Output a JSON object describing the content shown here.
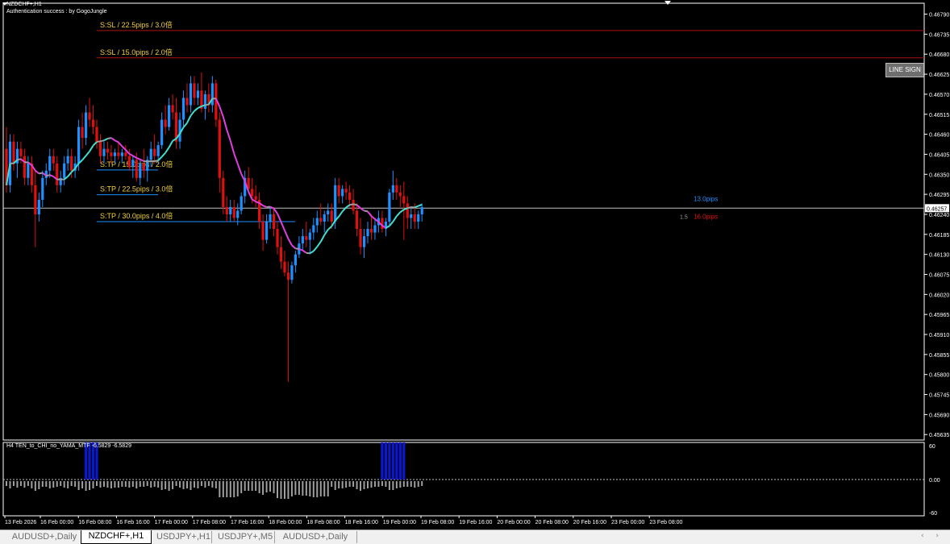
{
  "window": {
    "symbol_title": "NZDCHF+,H1",
    "auth_text": "Authentication success : by GogoJungle"
  },
  "colors": {
    "background": "#000000",
    "bull": "#1e90ff",
    "bear": "#e01010",
    "ma_up": "#40e0d0",
    "ma_down": "#e040e0",
    "ma_flat": "#a0a0a0",
    "sl_line": "#b01010",
    "tp_line": "#1e90ff",
    "label_yellow": "#f0d040",
    "osc_bar": "#a0a0a0",
    "osc_signal": "#0a18d0",
    "grid_text": "#ffffff"
  },
  "trade_lines": {
    "sl_lines": [
      {
        "label": "S:SL / 22.5pips / 3.0倍",
        "price": 0.46745
      },
      {
        "label": "S:SL / 15.0pips / 2.0倍",
        "price": 0.4667
      }
    ],
    "tp_lines": [
      {
        "label": "S:TP / 15.0pips / 2.0倍",
        "price": 0.46362
      },
      {
        "label": "S:TP / 22.5pips / 3.0倍",
        "price": 0.46294
      },
      {
        "label": "S:TP / 30.0pips / 4.0倍",
        "price": 0.4622
      }
    ],
    "current_price_label": "0.46257",
    "current_price": 0.46257,
    "pips_up_label": "13.0pips",
    "pips_down_label": "16.0pips",
    "ratio_label": "1.5"
  },
  "line_sign_button": "LINE SIGN",
  "price_axis": {
    "ticks": [
      "0.46790",
      "0.46735",
      "0.46680",
      "0.46625",
      "0.46570",
      "0.46515",
      "0.46460",
      "0.46405",
      "0.46350",
      "0.46295",
      "0.46240",
      "0.46185",
      "0.46130",
      "0.46075",
      "0.46020",
      "0.45965",
      "0.45910",
      "0.45855",
      "0.45800",
      "0.45745",
      "0.45690",
      "0.45635"
    ]
  },
  "time_axis": {
    "labels": [
      "13 Feb 2026",
      "16 Feb 00:00",
      "16 Feb 08:00",
      "16 Feb 16:00",
      "17 Feb 00:00",
      "17 Feb 08:00",
      "17 Feb 16:00",
      "18 Feb 00:00",
      "18 Feb 08:00",
      "18 Feb 16:00",
      "19 Feb 00:00",
      "19 Feb 08:00",
      "19 Feb 16:00",
      "20 Feb 00:00",
      "20 Feb 08:00",
      "20 Feb 16:00",
      "23 Feb 00:00",
      "23 Feb 08:00"
    ]
  },
  "oscillator": {
    "title": "H4  TEN_to_CHI_no_YAMA_MTF -6.5829 -6.5829",
    "ticks": [
      "60",
      "0.00",
      "-60"
    ]
  },
  "tabs": [
    {
      "label": "AUDUSD+,Daily",
      "active": false
    },
    {
      "label": "NZDCHF+,H1",
      "active": true
    },
    {
      "label": "USDJPY+,H1",
      "active": false
    },
    {
      "label": "USDJPY+,M5",
      "active": false
    },
    {
      "label": "AUDUSD+,Daily",
      "active": false
    }
  ],
  "chart_data": {
    "type": "candlestick",
    "symbol": "NZDCHF+",
    "timeframe": "H1",
    "ylim": [
      0.4562,
      0.4682
    ],
    "candles": [
      [
        0.4642,
        0.4648,
        0.463,
        0.4632
      ],
      [
        0.4632,
        0.4646,
        0.463,
        0.4644
      ],
      [
        0.4644,
        0.4646,
        0.4636,
        0.4638
      ],
      [
        0.4638,
        0.4644,
        0.4634,
        0.4642
      ],
      [
        0.4642,
        0.4644,
        0.4638,
        0.464
      ],
      [
        0.464,
        0.4642,
        0.4632,
        0.4634
      ],
      [
        0.4634,
        0.464,
        0.4632,
        0.4638
      ],
      [
        0.4638,
        0.464,
        0.463,
        0.4632
      ],
      [
        0.4632,
        0.4636,
        0.4615,
        0.4624
      ],
      [
        0.4624,
        0.463,
        0.4622,
        0.4628
      ],
      [
        0.4628,
        0.4636,
        0.4626,
        0.4634
      ],
      [
        0.4634,
        0.4638,
        0.4632,
        0.4636
      ],
      [
        0.4636,
        0.4642,
        0.4634,
        0.464
      ],
      [
        0.464,
        0.4642,
        0.4636,
        0.4638
      ],
      [
        0.4638,
        0.464,
        0.463,
        0.4632
      ],
      [
        0.4632,
        0.4636,
        0.463,
        0.4634
      ],
      [
        0.4634,
        0.464,
        0.4632,
        0.4638
      ],
      [
        0.4638,
        0.4642,
        0.4636,
        0.464
      ],
      [
        0.464,
        0.4642,
        0.4634,
        0.4636
      ],
      [
        0.4636,
        0.464,
        0.4634,
        0.4638
      ],
      [
        0.4638,
        0.465,
        0.4636,
        0.4648
      ],
      [
        0.4648,
        0.4652,
        0.4642,
        0.4645
      ],
      [
        0.4645,
        0.4654,
        0.4643,
        0.4652
      ],
      [
        0.4652,
        0.4656,
        0.4648,
        0.465
      ],
      [
        0.465,
        0.4654,
        0.4646,
        0.4648
      ],
      [
        0.4648,
        0.465,
        0.4642,
        0.4644
      ],
      [
        0.4644,
        0.4646,
        0.4638,
        0.464
      ],
      [
        0.464,
        0.4644,
        0.4638,
        0.4642
      ],
      [
        0.4642,
        0.4644,
        0.4639,
        0.4641
      ],
      [
        0.4641,
        0.4643,
        0.4638,
        0.464
      ],
      [
        0.464,
        0.4642,
        0.4638,
        0.4641
      ],
      [
        0.4641,
        0.4644,
        0.4639,
        0.464
      ],
      [
        0.464,
        0.4642,
        0.4638,
        0.4641
      ],
      [
        0.4641,
        0.4643,
        0.4639,
        0.464
      ],
      [
        0.464,
        0.4642,
        0.4636,
        0.4637
      ],
      [
        0.4637,
        0.464,
        0.4634,
        0.4639
      ],
      [
        0.4639,
        0.4641,
        0.4633,
        0.4634
      ],
      [
        0.4634,
        0.4639,
        0.4632,
        0.4638
      ],
      [
        0.4638,
        0.4642,
        0.4634,
        0.4636
      ],
      [
        0.4636,
        0.464,
        0.4633,
        0.4639
      ],
      [
        0.4639,
        0.4644,
        0.4637,
        0.4642
      ],
      [
        0.4642,
        0.4646,
        0.4638,
        0.464
      ],
      [
        0.464,
        0.4644,
        0.4638,
        0.4643
      ],
      [
        0.4643,
        0.4652,
        0.4642,
        0.465
      ],
      [
        0.465,
        0.4654,
        0.4646,
        0.4648
      ],
      [
        0.4648,
        0.4656,
        0.4647,
        0.4654
      ],
      [
        0.4654,
        0.4657,
        0.465,
        0.4652
      ],
      [
        0.4652,
        0.4656,
        0.4642,
        0.4644
      ],
      [
        0.4644,
        0.4652,
        0.4642,
        0.465
      ],
      [
        0.465,
        0.4658,
        0.4648,
        0.4656
      ],
      [
        0.4656,
        0.466,
        0.4652,
        0.4654
      ],
      [
        0.4654,
        0.4662,
        0.4652,
        0.466
      ],
      [
        0.466,
        0.4662,
        0.4654,
        0.4656
      ],
      [
        0.4656,
        0.466,
        0.4654,
        0.4658
      ],
      [
        0.4658,
        0.4663,
        0.4652,
        0.4653
      ],
      [
        0.4653,
        0.4658,
        0.465,
        0.4657
      ],
      [
        0.4657,
        0.466,
        0.4652,
        0.4654
      ],
      [
        0.4654,
        0.4662,
        0.4652,
        0.466
      ],
      [
        0.466,
        0.4661,
        0.4648,
        0.465
      ],
      [
        0.465,
        0.4652,
        0.463,
        0.4634
      ],
      [
        0.4634,
        0.4636,
        0.4624,
        0.4626
      ],
      [
        0.4626,
        0.4629,
        0.4622,
        0.4624
      ],
      [
        0.4624,
        0.4628,
        0.4622,
        0.4626
      ],
      [
        0.4626,
        0.4628,
        0.4622,
        0.4623
      ],
      [
        0.4623,
        0.4627,
        0.4621,
        0.4625
      ],
      [
        0.4625,
        0.463,
        0.4624,
        0.4629
      ],
      [
        0.4629,
        0.4636,
        0.4627,
        0.4634
      ],
      [
        0.4634,
        0.4637,
        0.463,
        0.4631
      ],
      [
        0.4631,
        0.4634,
        0.4627,
        0.4629
      ],
      [
        0.4629,
        0.4632,
        0.4626,
        0.4628
      ],
      [
        0.4628,
        0.463,
        0.462,
        0.4622
      ],
      [
        0.4622,
        0.4624,
        0.4614,
        0.4617
      ],
      [
        0.4617,
        0.4624,
        0.4616,
        0.4622
      ],
      [
        0.4622,
        0.4626,
        0.462,
        0.4624
      ],
      [
        0.4624,
        0.4626,
        0.4618,
        0.462
      ],
      [
        0.462,
        0.4622,
        0.4613,
        0.4615
      ],
      [
        0.4615,
        0.4618,
        0.4609,
        0.4611
      ],
      [
        0.4611,
        0.4614,
        0.4607,
        0.4608
      ],
      [
        0.4608,
        0.4611,
        0.4578,
        0.4606
      ],
      [
        0.4606,
        0.4611,
        0.4605,
        0.461
      ],
      [
        0.461,
        0.4614,
        0.4608,
        0.4613
      ],
      [
        0.4613,
        0.4618,
        0.4612,
        0.4616
      ],
      [
        0.4616,
        0.462,
        0.4614,
        0.4618
      ],
      [
        0.4618,
        0.4622,
        0.4615,
        0.4617
      ],
      [
        0.4617,
        0.462,
        0.4613,
        0.4619
      ],
      [
        0.4619,
        0.4623,
        0.4617,
        0.4621
      ],
      [
        0.4621,
        0.4625,
        0.4619,
        0.4623
      ],
      [
        0.4623,
        0.4627,
        0.4621,
        0.4622
      ],
      [
        0.4622,
        0.4625,
        0.4619,
        0.4624
      ],
      [
        0.4624,
        0.4627,
        0.4622,
        0.4625
      ],
      [
        0.4625,
        0.4627,
        0.462,
        0.4622
      ],
      [
        0.4622,
        0.4634,
        0.462,
        0.4632
      ],
      [
        0.4632,
        0.4634,
        0.4627,
        0.4629
      ],
      [
        0.4629,
        0.4632,
        0.4627,
        0.4631
      ],
      [
        0.4631,
        0.4633,
        0.4628,
        0.463
      ],
      [
        0.463,
        0.4632,
        0.4626,
        0.4628
      ],
      [
        0.4628,
        0.4631,
        0.4624,
        0.4625
      ],
      [
        0.4625,
        0.4627,
        0.4618,
        0.462
      ],
      [
        0.462,
        0.4623,
        0.4613,
        0.4615
      ],
      [
        0.4615,
        0.462,
        0.4612,
        0.4618
      ],
      [
        0.4618,
        0.4622,
        0.4616,
        0.462
      ],
      [
        0.462,
        0.4624,
        0.4617,
        0.4619
      ],
      [
        0.4619,
        0.4623,
        0.4617,
        0.4621
      ],
      [
        0.4621,
        0.4625,
        0.4619,
        0.4623
      ],
      [
        0.4623,
        0.4625,
        0.4619,
        0.462
      ],
      [
        0.462,
        0.4623,
        0.4618,
        0.4622
      ],
      [
        0.4622,
        0.4631,
        0.4621,
        0.463
      ],
      [
        0.463,
        0.4636,
        0.4628,
        0.4632
      ],
      [
        0.4632,
        0.4634,
        0.4628,
        0.463
      ],
      [
        0.463,
        0.4632,
        0.4626,
        0.4629
      ],
      [
        0.4629,
        0.4633,
        0.4617,
        0.4627
      ],
      [
        0.4627,
        0.4629,
        0.462,
        0.4623
      ],
      [
        0.4623,
        0.4626,
        0.462,
        0.4624
      ],
      [
        0.4624,
        0.4627,
        0.462,
        0.4622
      ],
      [
        0.4622,
        0.4625,
        0.462,
        0.4624
      ],
      [
        0.4624,
        0.4627,
        0.4622,
        0.4626
      ]
    ],
    "oscillator": {
      "ylim": [
        -60,
        60
      ],
      "signal_bars": [
        {
          "x_start": 22,
          "x_end": 25,
          "value": 60
        },
        {
          "x_start": 104,
          "x_end": 110,
          "value": 60
        }
      ]
    }
  }
}
